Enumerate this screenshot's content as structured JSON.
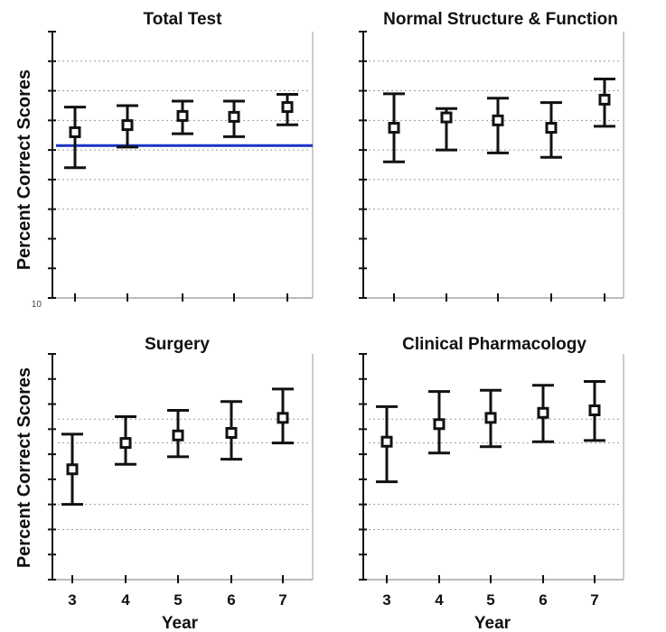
{
  "figure": {
    "ylabel": "Percent Correct Scores",
    "xlabel": "Year",
    "y_origin_label": "10"
  },
  "chart_data": [
    {
      "type": "scatter",
      "subtype": "error-bar",
      "title": "Total Test",
      "x": [
        "3",
        "4",
        "5",
        "6",
        "7"
      ],
      "mean": [
        66.0,
        68.4,
        71.5,
        71.2,
        74.5
      ],
      "upper": [
        74.5,
        75.0,
        76.5,
        76.5,
        78.8
      ],
      "lower": [
        54.0,
        61.0,
        65.5,
        64.5,
        68.5
      ],
      "ylim": [
        10,
        100
      ],
      "reference_line": {
        "value": 61.5,
        "color": "#1a33c8"
      },
      "gridlines": [
        40,
        50,
        60,
        70,
        80,
        90
      ],
      "grid": true
    },
    {
      "type": "scatter",
      "subtype": "error-bar",
      "title": "Normal Structure & Function",
      "x": [
        "3",
        "4",
        "5",
        "6",
        "7"
      ],
      "mean": [
        67.5,
        71.0,
        70.0,
        67.5,
        77.0
      ],
      "upper": [
        79.0,
        74.0,
        77.5,
        76.0,
        84.0
      ],
      "lower": [
        56.0,
        60.0,
        59.0,
        57.5,
        68.0
      ],
      "ylim": [
        10,
        100
      ],
      "gridlines": [
        40,
        50,
        60,
        70,
        80,
        90
      ],
      "grid": true
    },
    {
      "type": "scatter",
      "subtype": "error-bar",
      "title": "Surgery",
      "x": [
        "3",
        "4",
        "5",
        "6",
        "7"
      ],
      "mean": [
        54.0,
        64.5,
        67.5,
        68.5,
        74.5
      ],
      "upper": [
        68.0,
        75.0,
        77.5,
        81.0,
        86.0
      ],
      "lower": [
        40.0,
        56.0,
        59.0,
        58.0,
        64.5
      ],
      "ylim": [
        10,
        100
      ],
      "gridlines": [
        30,
        40,
        64.5,
        74.0
      ],
      "grid": true
    },
    {
      "type": "scatter",
      "subtype": "error-bar",
      "title": "Clinical Pharmacology",
      "x": [
        "3",
        "4",
        "5",
        "6",
        "7"
      ],
      "mean": [
        65.0,
        72.0,
        74.5,
        76.5,
        77.5
      ],
      "upper": [
        79.0,
        85.0,
        85.5,
        87.5,
        89.0
      ],
      "lower": [
        49.0,
        60.5,
        63.0,
        65.0,
        65.5
      ],
      "ylim": [
        10,
        100
      ],
      "gridlines": [
        30,
        40,
        64.5,
        74.0
      ],
      "grid": true
    }
  ]
}
